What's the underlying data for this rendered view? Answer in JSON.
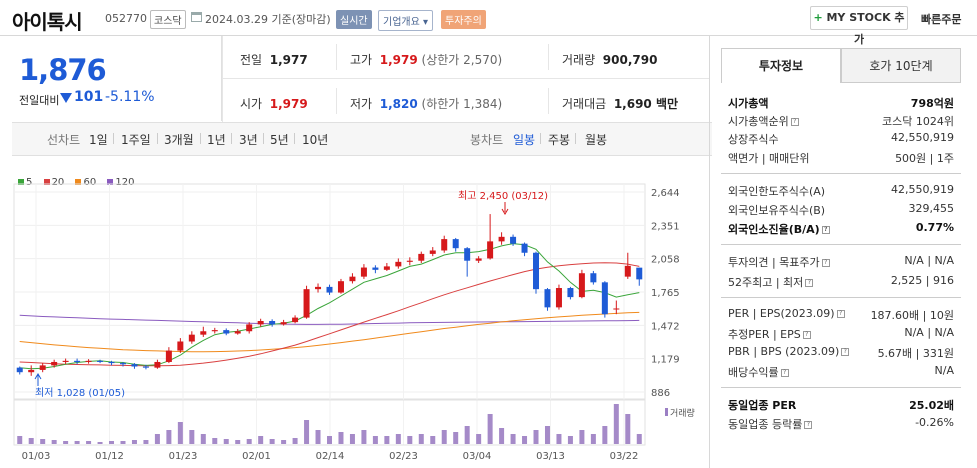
{
  "header": {
    "name": "아이톡시",
    "code": "052770",
    "market": "코스닥",
    "date": "2024.03.29 기준(장마감)",
    "badges": [
      "실시간",
      "기업개요 ▾",
      "투자주의"
    ],
    "mystock": "MY STOCK 추가",
    "quick_order": "빠른주문"
  },
  "price": {
    "current": "1,876",
    "compare_label": "전일대비",
    "change": "101",
    "change_pct": "-5.11%"
  },
  "quote": {
    "prev_label": "전일",
    "prev": "1,977",
    "high_label": "고가",
    "high": "1,979",
    "upper_limit": "(상한가 2,570)",
    "volume_label": "거래량",
    "volume": "900,790",
    "open_label": "시가",
    "open": "1,979",
    "low_label": "저가",
    "low": "1,820",
    "lower_limit": "(하한가 1,384)",
    "amount_label": "거래대금",
    "amount": "1,690 백만"
  },
  "period": {
    "line_label": "선차트",
    "line_items": [
      "1일",
      "1주일",
      "3개월",
      "1년",
      "3년",
      "5년",
      "10년"
    ],
    "candle_label": "봉차트",
    "candle_items": [
      "일봉",
      "주봉",
      "월봉"
    ],
    "active_candle": "일봉"
  },
  "legend": [
    {
      "label": "5",
      "color": "#3aa53a"
    },
    {
      "label": "20",
      "color": "#d94040"
    },
    {
      "label": "60",
      "color": "#f08a1c"
    },
    {
      "label": "120",
      "color": "#8a5bbf"
    }
  ],
  "chart_data": {
    "type": "line",
    "y_ticks": [
      "2,644",
      "2,351",
      "2,058",
      "1,765",
      "1,472",
      "1,179",
      "886"
    ],
    "x_ticks": [
      "01/03",
      "01/12",
      "01/23",
      "02/01",
      "02/14",
      "02/23",
      "03/04",
      "03/13",
      "03/22"
    ],
    "ylim": [
      886,
      2644
    ],
    "annotations": {
      "high": "최고 2,450 (03/12)",
      "low": "최저 1,028 (01/05)"
    },
    "volume_label": "거래량",
    "candles": [
      [
        1100,
        1060,
        1110,
        1040
      ],
      [
        1060,
        1080,
        1120,
        1028
      ],
      [
        1080,
        1120,
        1140,
        1060
      ],
      [
        1120,
        1150,
        1170,
        1100
      ],
      [
        1150,
        1160,
        1180,
        1130
      ],
      [
        1160,
        1150,
        1180,
        1130
      ],
      [
        1150,
        1160,
        1175,
        1135
      ],
      [
        1160,
        1150,
        1170,
        1140
      ],
      [
        1150,
        1140,
        1160,
        1120
      ],
      [
        1140,
        1130,
        1150,
        1110
      ],
      [
        1130,
        1110,
        1140,
        1090
      ],
      [
        1110,
        1100,
        1125,
        1085
      ],
      [
        1100,
        1150,
        1170,
        1090
      ],
      [
        1150,
        1250,
        1280,
        1140
      ],
      [
        1250,
        1330,
        1360,
        1230
      ],
      [
        1330,
        1390,
        1420,
        1310
      ],
      [
        1390,
        1420,
        1460,
        1370
      ],
      [
        1420,
        1430,
        1450,
        1400
      ],
      [
        1430,
        1400,
        1445,
        1385
      ],
      [
        1400,
        1420,
        1440,
        1390
      ],
      [
        1420,
        1480,
        1500,
        1400
      ],
      [
        1480,
        1510,
        1530,
        1460
      ],
      [
        1510,
        1480,
        1525,
        1460
      ],
      [
        1480,
        1500,
        1520,
        1470
      ],
      [
        1500,
        1540,
        1560,
        1490
      ],
      [
        1540,
        1790,
        1820,
        1530
      ],
      [
        1790,
        1810,
        1840,
        1760
      ],
      [
        1810,
        1760,
        1830,
        1740
      ],
      [
        1760,
        1860,
        1880,
        1750
      ],
      [
        1860,
        1900,
        1930,
        1840
      ],
      [
        1900,
        1980,
        2010,
        1880
      ],
      [
        1980,
        1960,
        2000,
        1930
      ],
      [
        1960,
        1990,
        2020,
        1950
      ],
      [
        1990,
        2030,
        2060,
        1970
      ],
      [
        2030,
        2040,
        2070,
        2000
      ],
      [
        2040,
        2100,
        2120,
        2020
      ],
      [
        2100,
        2130,
        2160,
        2080
      ],
      [
        2130,
        2230,
        2260,
        2110
      ],
      [
        2230,
        2150,
        2240,
        2120
      ],
      [
        2150,
        2040,
        2160,
        1900
      ],
      [
        2040,
        2060,
        2080,
        2020
      ],
      [
        2060,
        2210,
        2450,
        2050
      ],
      [
        2210,
        2250,
        2290,
        2180
      ],
      [
        2250,
        2190,
        2270,
        2170
      ],
      [
        2190,
        2110,
        2200,
        2080
      ],
      [
        2110,
        1790,
        2120,
        1750
      ],
      [
        1790,
        1630,
        1800,
        1600
      ],
      [
        1630,
        1800,
        1830,
        1610
      ],
      [
        1800,
        1720,
        1810,
        1700
      ],
      [
        1720,
        1930,
        1960,
        1710
      ],
      [
        1930,
        1850,
        1950,
        1830
      ],
      [
        1850,
        1570,
        1860,
        1540
      ],
      [
        1620,
        1620,
        1690,
        1570
      ],
      [
        1900,
        1995,
        2110,
        1880
      ],
      [
        1979,
        1876,
        1979,
        1820
      ]
    ],
    "ma5": [
      1100,
      1090,
      1095,
      1110,
      1130,
      1145,
      1155,
      1160,
      1150,
      1145,
      1130,
      1120,
      1125,
      1160,
      1210,
      1280,
      1340,
      1390,
      1410,
      1420,
      1440,
      1460,
      1480,
      1490,
      1510,
      1560,
      1620,
      1670,
      1730,
      1790,
      1850,
      1880,
      1910,
      1950,
      1990,
      2010,
      2050,
      2090,
      2110,
      2110,
      2120,
      2140,
      2170,
      2190,
      2180,
      2140,
      2030,
      1950,
      1850,
      1770,
      1780,
      1760,
      1720,
      1740,
      1760
    ],
    "ma20": [
      1150,
      1145,
      1140,
      1135,
      1130,
      1128,
      1126,
      1124,
      1122,
      1120,
      1118,
      1116,
      1116,
      1118,
      1122,
      1130,
      1140,
      1152,
      1166,
      1182,
      1200,
      1222,
      1246,
      1272,
      1298,
      1330,
      1364,
      1398,
      1432,
      1466,
      1500,
      1534,
      1566,
      1600,
      1636,
      1670,
      1706,
      1740,
      1772,
      1802,
      1832,
      1862,
      1890,
      1918,
      1944,
      1966,
      1982,
      1996,
      2006,
      2014,
      2020,
      2022,
      2020,
      2010,
      1990
    ],
    "ma60": [
      1330,
      1320,
      1310,
      1300,
      1292,
      1284,
      1276,
      1270,
      1264,
      1258,
      1254,
      1250,
      1247,
      1244,
      1242,
      1240,
      1240,
      1241,
      1243,
      1246,
      1250,
      1255,
      1261,
      1268,
      1276,
      1285,
      1296,
      1308,
      1320,
      1333,
      1346,
      1360,
      1374,
      1388,
      1402,
      1416,
      1430,
      1444,
      1456,
      1468,
      1480,
      1491,
      1502,
      1512,
      1521,
      1530,
      1538,
      1546,
      1553,
      1560,
      1566,
      1572,
      1577,
      1582,
      1586
    ],
    "ma120": [
      1560,
      1555,
      1550,
      1546,
      1542,
      1538,
      1534,
      1530,
      1527,
      1524,
      1521,
      1518,
      1515,
      1512,
      1509,
      1506,
      1503,
      1500,
      1497,
      1494,
      1491,
      1488,
      1485,
      1483,
      1481,
      1480,
      1480,
      1481,
      1482,
      1484,
      1486,
      1488,
      1490,
      1492,
      1494,
      1496,
      1497,
      1498,
      1499,
      1500,
      1501,
      1502,
      1503,
      1504,
      1505,
      1506,
      1507,
      1508,
      1509,
      1510,
      1511,
      1512,
      1513,
      1514,
      1515
    ],
    "volume": [
      8,
      6,
      5,
      4,
      3,
      3,
      3,
      2,
      3,
      3,
      4,
      4,
      10,
      14,
      22,
      14,
      10,
      6,
      5,
      4,
      5,
      8,
      5,
      4,
      6,
      24,
      14,
      8,
      12,
      10,
      14,
      8,
      8,
      10,
      8,
      10,
      8,
      14,
      12,
      18,
      10,
      30,
      16,
      10,
      8,
      14,
      18,
      10,
      8,
      14,
      10,
      18,
      40,
      30,
      10
    ]
  },
  "tabs": {
    "info": "투자정보",
    "quote10": "호가 10단계"
  },
  "invest": {
    "cap_label": "시가총액",
    "cap": "798억원",
    "rank_label": "시가총액순위",
    "rank": "코스닥 1024위",
    "shares_label": "상장주식수",
    "shares": "42,550,919",
    "par_label": "액면가 | 매매단위",
    "par": "500원 | 1주",
    "foreign_limit_label": "외국인한도주식수(A)",
    "foreign_limit": "42,550,919",
    "foreign_hold_label": "외국인보유주식수(B)",
    "foreign_hold": "329,455",
    "foreign_ratio_label": "외국인소진율(B/A)",
    "foreign_ratio": "0.77%",
    "opinion_label": "투자의견 | 목표주가",
    "opinion": "N/A | N/A",
    "w52_label": "52주최고 | 최저",
    "w52": "2,525 | 916",
    "per_label": "PER | EPS(2023.09)",
    "per": "187.60배 | 10원",
    "eper_label": "추정PER | EPS",
    "eper": "N/A | N/A",
    "pbr_label": "PBR | BPS (2023.09)",
    "pbr": "5.67배 | 331원",
    "div_label": "배당수익률",
    "div": "N/A",
    "sector_per_label": "동일업종 PER",
    "sector_per": "25.02배",
    "sector_rate_label": "동일업종 등락률",
    "sector_rate": "-0.26%"
  }
}
